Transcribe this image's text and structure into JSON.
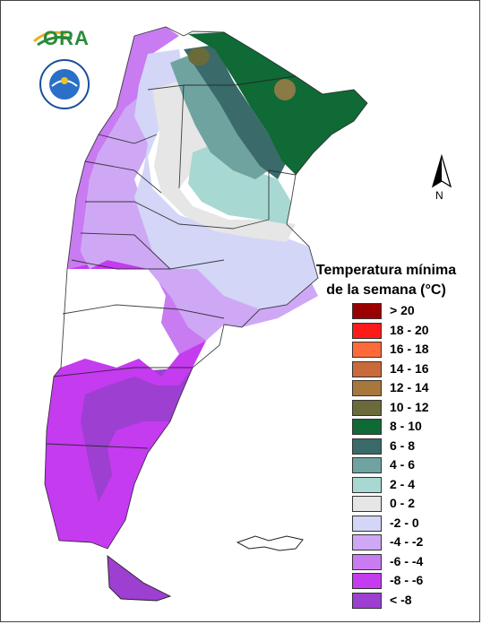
{
  "logo": {
    "text": "ORA"
  },
  "north_arrow": {
    "label": "N"
  },
  "legend": {
    "title_line1": "Temperatura mínima",
    "title_line2": "de la semana (°C)",
    "items": [
      {
        "label": "> 20",
        "color": "#9b0000"
      },
      {
        "label": "18 - 20",
        "color": "#ff1a1a"
      },
      {
        "label": "16 - 18",
        "color": "#ff6a3a"
      },
      {
        "label": "14 - 16",
        "color": "#c96a3a"
      },
      {
        "label": "12 - 14",
        "color": "#a8773c"
      },
      {
        "label": "10 - 12",
        "color": "#6a6a3a"
      },
      {
        "label": "8 - 10",
        "color": "#0f6a35"
      },
      {
        "label": "6 - 8",
        "color": "#3a6a6a"
      },
      {
        "label": "4 - 6",
        "color": "#6fa3a0"
      },
      {
        "label": "2 - 4",
        "color": "#a8d8d2"
      },
      {
        "label": "0 - 2",
        "color": "#e6e6e6"
      },
      {
        "label": "-2 - 0",
        "color": "#d3d6f7"
      },
      {
        "label": "-4 - -2",
        "color": "#cfa8f5"
      },
      {
        "label": "-6 - -4",
        "color": "#c97bf2"
      },
      {
        "label": "-8 - -6",
        "color": "#c43bf0"
      },
      {
        "label": "< -8",
        "color": "#9d3fd0"
      }
    ]
  }
}
